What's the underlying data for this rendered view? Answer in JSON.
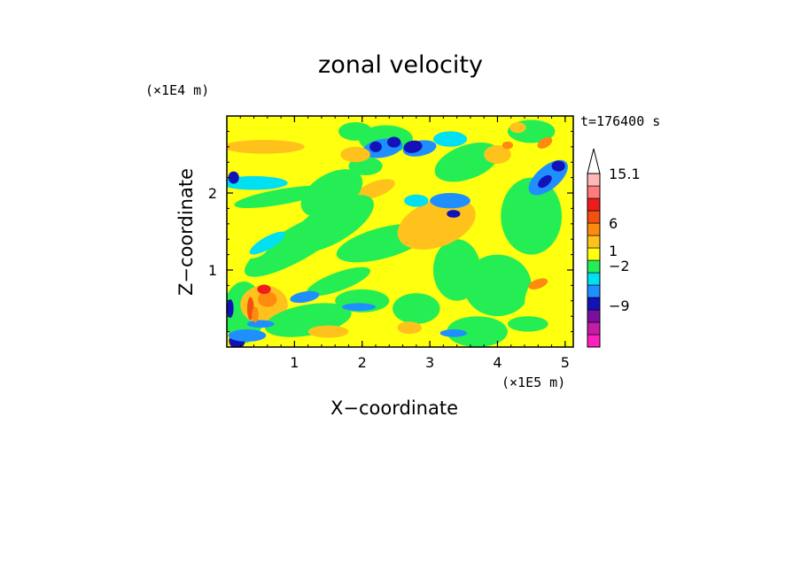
{
  "chart_data": {
    "type": "heatmap",
    "title": "zonal velocity",
    "xlabel": "X−coordinate",
    "ylabel": "Z−coordinate",
    "x_unit": "(×1E5 m)",
    "y_unit": "(×1E4 m)",
    "timestamp": "t=176400 s",
    "xlim": [
      0,
      5.12
    ],
    "ylim": [
      0,
      3.0
    ],
    "x_ticks": [
      1,
      2,
      3,
      4,
      5
    ],
    "y_ticks": [
      1,
      2
    ],
    "colorbar": {
      "levels": [
        {
          "color": "#ff1fbf"
        },
        {
          "color": "#c41ba8"
        },
        {
          "color": "#7a0f9e"
        },
        {
          "color": "#1212b8"
        },
        {
          "color": "#1f8fff"
        },
        {
          "color": "#00e0f0"
        },
        {
          "color": "#25ee55"
        },
        {
          "color": "#ffff10"
        },
        {
          "color": "#ffc21c"
        },
        {
          "color": "#ff8a10"
        },
        {
          "color": "#f2510f"
        },
        {
          "color": "#ee1c1c"
        },
        {
          "color": "#ff7a7a"
        },
        {
          "color": "#ffb8b8"
        }
      ],
      "labels": [
        "15.1",
        "6",
        "1",
        "−2",
        "−9"
      ],
      "extend": "max"
    },
    "field_blobs": [
      {
        "x": 0.95,
        "z": 2.38,
        "rx": 1.1,
        "rz": 0.22,
        "rot": -18,
        "level": "#ffff10"
      },
      {
        "x": 0.55,
        "z": 2.6,
        "rx": 0.6,
        "rz": 0.09,
        "rot": 0,
        "level": "#ffc21c"
      },
      {
        "x": 0.4,
        "z": 2.13,
        "rx": 0.5,
        "rz": 0.09,
        "rot": 0,
        "level": "#00e0f0"
      },
      {
        "x": 0.8,
        "z": 1.95,
        "rx": 0.7,
        "rz": 0.1,
        "rot": -10,
        "level": "#25ee55"
      },
      {
        "x": 1.05,
        "z": 1.35,
        "rx": 0.9,
        "rz": 0.22,
        "rot": -30,
        "level": "#25ee55"
      },
      {
        "x": 0.35,
        "z": 1.4,
        "rx": 0.3,
        "rz": 0.25,
        "rot": 0,
        "level": "#ffff10"
      },
      {
        "x": 0.25,
        "z": 0.45,
        "rx": 0.3,
        "rz": 0.4,
        "rot": 0,
        "level": "#25ee55"
      },
      {
        "x": 0.55,
        "z": 0.55,
        "rx": 0.35,
        "rz": 0.25,
        "rot": 0,
        "level": "#ffc21c"
      },
      {
        "x": 0.6,
        "z": 0.62,
        "rx": 0.14,
        "rz": 0.1,
        "rot": 0,
        "level": "#ff8a10"
      },
      {
        "x": 0.35,
        "z": 0.5,
        "rx": 0.05,
        "rz": 0.15,
        "rot": 0,
        "level": "#f2510f"
      },
      {
        "x": 0.15,
        "z": 0.08,
        "rx": 0.12,
        "rz": 0.1,
        "rot": 0,
        "level": "#1212b8"
      },
      {
        "x": 0.05,
        "z": 0.5,
        "rx": 0.05,
        "rz": 0.12,
        "rot": 0,
        "level": "#1212b8"
      },
      {
        "x": 0.1,
        "z": 2.2,
        "rx": 0.08,
        "rz": 0.08,
        "rot": 0,
        "level": "#1212b8"
      },
      {
        "x": 1.2,
        "z": 0.35,
        "rx": 0.65,
        "rz": 0.2,
        "rot": -10,
        "level": "#25ee55"
      },
      {
        "x": 1.65,
        "z": 0.85,
        "rx": 0.5,
        "rz": 0.12,
        "rot": -20,
        "level": "#25ee55"
      },
      {
        "x": 2.35,
        "z": 2.7,
        "rx": 0.4,
        "rz": 0.18,
        "rot": 0,
        "level": "#25ee55"
      },
      {
        "x": 2.3,
        "z": 2.58,
        "rx": 0.3,
        "rz": 0.12,
        "rot": -10,
        "level": "#1f8fff"
      },
      {
        "x": 2.85,
        "z": 2.58,
        "rx": 0.25,
        "rz": 0.1,
        "rot": -10,
        "level": "#1f8fff"
      },
      {
        "x": 2.2,
        "z": 2.6,
        "rx": 0.09,
        "rz": 0.07,
        "rot": 0,
        "level": "#1212b8"
      },
      {
        "x": 2.47,
        "z": 2.66,
        "rx": 0.1,
        "rz": 0.07,
        "rot": 0,
        "level": "#1212b8"
      },
      {
        "x": 2.75,
        "z": 2.6,
        "rx": 0.14,
        "rz": 0.08,
        "rot": -10,
        "level": "#1212b8"
      },
      {
        "x": 2.05,
        "z": 2.35,
        "rx": 0.25,
        "rz": 0.12,
        "rot": 0,
        "level": "#25ee55"
      },
      {
        "x": 1.9,
        "z": 2.5,
        "rx": 0.22,
        "rz": 0.1,
        "rot": 0,
        "level": "#ffc21c"
      },
      {
        "x": 2.2,
        "z": 2.05,
        "rx": 0.3,
        "rz": 0.1,
        "rot": -20,
        "level": "#ffc21c"
      },
      {
        "x": 1.55,
        "z": 2.0,
        "rx": 0.5,
        "rz": 0.25,
        "rot": -30,
        "level": "#25ee55"
      },
      {
        "x": 1.55,
        "z": 1.6,
        "rx": 0.7,
        "rz": 0.25,
        "rot": -30,
        "level": "#25ee55"
      },
      {
        "x": 2.3,
        "z": 1.35,
        "rx": 0.7,
        "rz": 0.2,
        "rot": -15,
        "level": "#25ee55"
      },
      {
        "x": 2.0,
        "z": 0.6,
        "rx": 0.4,
        "rz": 0.15,
        "rot": 0,
        "level": "#25ee55"
      },
      {
        "x": 1.95,
        "z": 0.52,
        "rx": 0.25,
        "rz": 0.05,
        "rot": 0,
        "level": "#1f8fff"
      },
      {
        "x": 2.8,
        "z": 0.5,
        "rx": 0.35,
        "rz": 0.2,
        "rot": 0,
        "level": "#25ee55"
      },
      {
        "x": 3.4,
        "z": 1.0,
        "rx": 0.35,
        "rz": 0.4,
        "rot": 0,
        "level": "#25ee55"
      },
      {
        "x": 3.1,
        "z": 1.6,
        "rx": 0.6,
        "rz": 0.3,
        "rot": -20,
        "level": "#ffc21c"
      },
      {
        "x": 3.3,
        "z": 1.9,
        "rx": 0.3,
        "rz": 0.1,
        "rot": 0,
        "level": "#1f8fff"
      },
      {
        "x": 3.35,
        "z": 1.73,
        "rx": 0.1,
        "rz": 0.05,
        "rot": 0,
        "level": "#1212b8"
      },
      {
        "x": 3.55,
        "z": 2.4,
        "rx": 0.5,
        "rz": 0.22,
        "rot": -20,
        "level": "#25ee55"
      },
      {
        "x": 3.3,
        "z": 2.7,
        "rx": 0.25,
        "rz": 0.1,
        "rot": 0,
        "level": "#00e0f0"
      },
      {
        "x": 4.0,
        "z": 2.5,
        "rx": 0.2,
        "rz": 0.12,
        "rot": 0,
        "level": "#ffc21c"
      },
      {
        "x": 4.15,
        "z": 2.62,
        "rx": 0.08,
        "rz": 0.05,
        "rot": 0,
        "level": "#ff8a10"
      },
      {
        "x": 4.5,
        "z": 1.7,
        "rx": 0.45,
        "rz": 0.5,
        "rot": 0,
        "level": "#25ee55"
      },
      {
        "x": 4.75,
        "z": 2.2,
        "rx": 0.35,
        "rz": 0.15,
        "rot": -40,
        "level": "#1f8fff"
      },
      {
        "x": 4.7,
        "z": 2.15,
        "rx": 0.12,
        "rz": 0.06,
        "rot": -40,
        "level": "#1212b8"
      },
      {
        "x": 4.9,
        "z": 2.35,
        "rx": 0.1,
        "rz": 0.07,
        "rot": 0,
        "level": "#1212b8"
      },
      {
        "x": 4.5,
        "z": 2.8,
        "rx": 0.35,
        "rz": 0.15,
        "rot": 0,
        "level": "#25ee55"
      },
      {
        "x": 4.7,
        "z": 2.65,
        "rx": 0.12,
        "rz": 0.06,
        "rot": -30,
        "level": "#ff8a10"
      },
      {
        "x": 4.0,
        "z": 0.8,
        "rx": 0.5,
        "rz": 0.4,
        "rot": 0,
        "level": "#25ee55"
      },
      {
        "x": 4.75,
        "z": 0.55,
        "rx": 0.35,
        "rz": 0.4,
        "rot": 0,
        "level": "#ffff10"
      },
      {
        "x": 4.45,
        "z": 0.3,
        "rx": 0.3,
        "rz": 0.1,
        "rot": 0,
        "level": "#25ee55"
      },
      {
        "x": 4.6,
        "z": 0.82,
        "rx": 0.15,
        "rz": 0.06,
        "rot": -20,
        "level": "#ff8a10"
      },
      {
        "x": 3.7,
        "z": 0.2,
        "rx": 0.45,
        "rz": 0.2,
        "rot": 0,
        "level": "#25ee55"
      },
      {
        "x": 3.35,
        "z": 0.18,
        "rx": 0.2,
        "rz": 0.05,
        "rot": 0,
        "level": "#1f8fff"
      },
      {
        "x": 2.7,
        "z": 0.25,
        "rx": 0.18,
        "rz": 0.08,
        "rot": 0,
        "level": "#ffc21c"
      },
      {
        "x": 1.5,
        "z": 0.2,
        "rx": 0.3,
        "rz": 0.08,
        "rot": 0,
        "level": "#ffc21c"
      },
      {
        "x": 0.3,
        "z": 0.15,
        "rx": 0.28,
        "rz": 0.08,
        "rot": 0,
        "level": "#1f8fff"
      },
      {
        "x": 0.5,
        "z": 0.3,
        "rx": 0.2,
        "rz": 0.05,
        "rot": 0,
        "level": "#1f8fff"
      },
      {
        "x": 0.55,
        "z": 0.75,
        "rx": 0.1,
        "rz": 0.06,
        "rot": 0,
        "level": "#ee1c1c"
      },
      {
        "x": 0.42,
        "z": 0.42,
        "rx": 0.05,
        "rz": 0.1,
        "rot": 0,
        "level": "#ff8a10"
      },
      {
        "x": 2.8,
        "z": 1.9,
        "rx": 0.18,
        "rz": 0.08,
        "rot": 0,
        "level": "#00e0f0"
      },
      {
        "x": 1.15,
        "z": 0.65,
        "rx": 0.22,
        "rz": 0.07,
        "rot": -10,
        "level": "#1f8fff"
      },
      {
        "x": 0.6,
        "z": 1.35,
        "rx": 0.3,
        "rz": 0.08,
        "rot": -30,
        "level": "#00e0f0"
      },
      {
        "x": 1.9,
        "z": 2.8,
        "rx": 0.25,
        "rz": 0.12,
        "rot": 0,
        "level": "#25ee55"
      },
      {
        "x": 4.3,
        "z": 2.85,
        "rx": 0.12,
        "rz": 0.07,
        "rot": 0,
        "level": "#ffc21c"
      }
    ]
  }
}
